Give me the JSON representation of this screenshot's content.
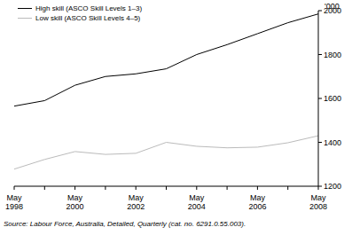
{
  "chart_data": {
    "type": "line",
    "y_label": "'000",
    "source": "Source: Labour Force, Australia, Detailed, Quarterly (cat. no. 6291.0.55.003).",
    "categories": [
      "May 1998",
      null,
      "May 2000",
      null,
      "May 2002",
      null,
      "May 2004",
      null,
      "May 2006",
      null,
      "May 2008"
    ],
    "series": [
      {
        "name": "High skill (ASCO Skill Levels 1–3)",
        "color": "#000000",
        "values": [
          1565,
          1590,
          1660,
          1700,
          1712,
          1735,
          1800,
          1845,
          1895,
          1945,
          1985
        ]
      },
      {
        "name": "Low skill (ASCO Skill Levels 4–5)",
        "color": "#bbbbbb",
        "values": [
          1278,
          1322,
          1358,
          1345,
          1350,
          1400,
          1382,
          1375,
          1378,
          1398,
          1430
        ]
      }
    ],
    "ylim": [
      1200,
      2000
    ],
    "yticks": [
      1200,
      1400,
      1600,
      1800,
      2000
    ],
    "grid": false,
    "legend": "top-left"
  }
}
